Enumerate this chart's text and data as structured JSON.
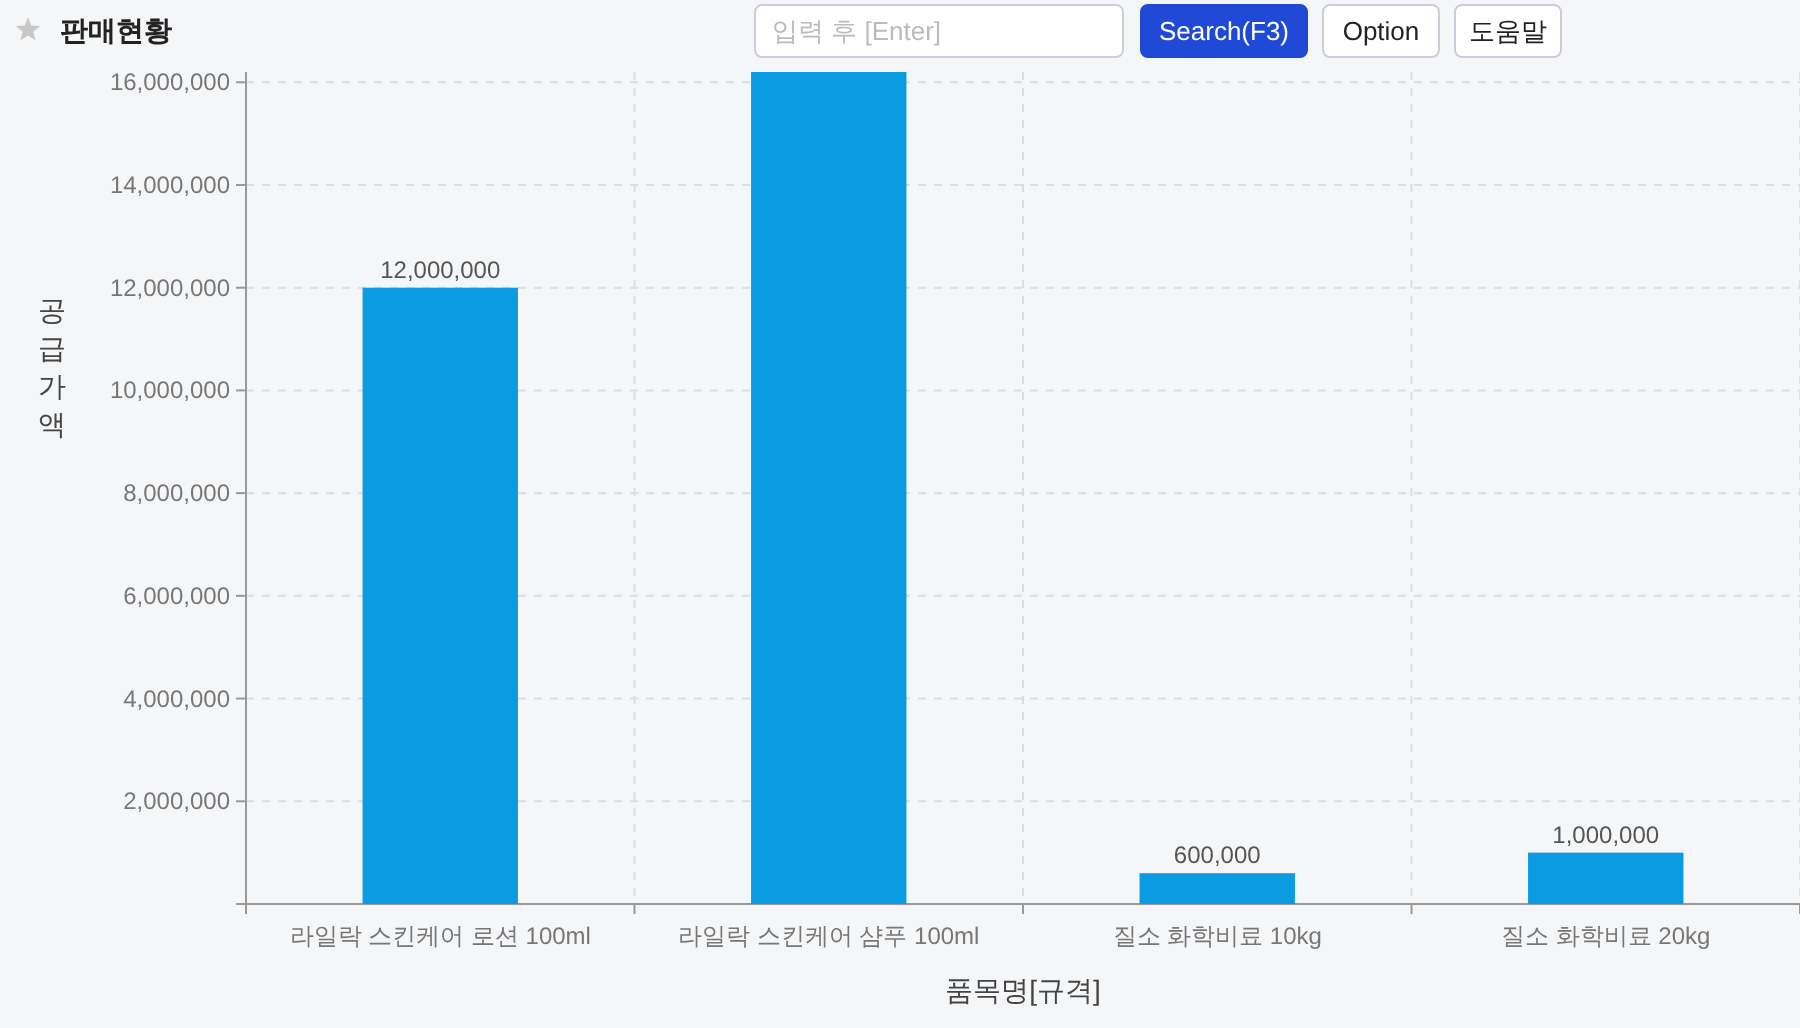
{
  "chart_data": {
    "type": "bar",
    "title": "판매현황",
    "annotations": [
      "입력 후 [Enter]",
      "Search(F3)",
      "Option",
      "도움말"
    ],
    "xlabel": "품목명[규격]",
    "ylabel": "공급가액",
    "categories": [
      "라일락 스킨케어 로션 100ml",
      "라일락 스킨케어 샴푸 100ml",
      "질소 화학비료 10kg",
      "질소 화학비료 20kg"
    ],
    "values": [
      12000000,
      16200000,
      600000,
      1000000
    ],
    "value_labels": [
      "12,000,000",
      null,
      "600,000",
      "1,000,000"
    ],
    "color": "#0a9be3",
    "ylim": [
      0,
      16200000
    ],
    "yticks": [
      {
        "value": 2000000,
        "label": "2,000,000"
      },
      {
        "value": 4000000,
        "label": "4,000,000"
      },
      {
        "value": 6000000,
        "label": "6,000,000"
      },
      {
        "value": 8000000,
        "label": "8,000,000"
      },
      {
        "value": 10000000,
        "label": "10,000,000"
      },
      {
        "value": 12000000,
        "label": "12,000,000"
      },
      {
        "value": 14000000,
        "label": "14,000,000"
      },
      {
        "value": 16000000,
        "label": "16,000,000"
      }
    ],
    "grid": true
  }
}
